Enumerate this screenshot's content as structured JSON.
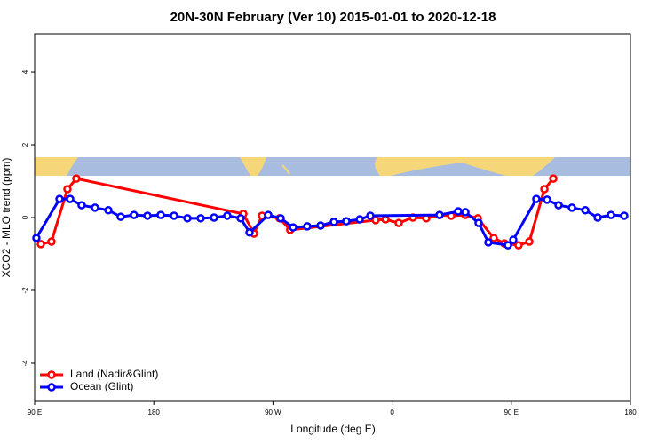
{
  "chart_data": {
    "type": "line",
    "title": "20N-30N February (Ver 10)   2015-01-01 to 2020-12-18",
    "x_label": "Longitude (deg E)",
    "y_label": "XCO2 - MLO trend (ppm)",
    "xlim": [
      90,
      540
    ],
    "xticks": [
      {
        "value": 90,
        "label": "90 E"
      },
      {
        "value": 180,
        "label": "180"
      },
      {
        "value": 270,
        "label": "90 W"
      },
      {
        "value": 360,
        "label": "0"
      },
      {
        "value": 450,
        "label": "90 E"
      },
      {
        "value": 540,
        "label": "180"
      }
    ],
    "ylim": [
      -5.05,
      5.05
    ],
    "yticks": [
      -4,
      -2,
      0,
      2,
      4
    ],
    "legend": "bottom-left",
    "series": [
      {
        "name": "Land (Nadir&Glint)",
        "color": "#ff0000",
        "x": [
          94.7,
          102.7,
          114.8,
          121.5,
          247.6,
          255.7,
          261.7,
          275,
          283,
          347.5,
          355,
          365,
          375.7,
          385.8,
          395.8,
          404.6,
          415.3,
          424.7,
          436.7,
          444.8,
          455.5,
          463.6,
          475,
          481.7
        ],
        "values": [
          -0.73,
          -0.66,
          0.78,
          1.07,
          0.1,
          -0.44,
          0.05,
          -0.02,
          -0.34,
          -0.07,
          -0.05,
          -0.15,
          0,
          -0.02,
          0.07,
          0.05,
          0.07,
          -0.02,
          -0.56,
          -0.71,
          -0.76,
          -0.66,
          0.78,
          1.07
        ]
      },
      {
        "name": "Ocean (Glint)",
        "color": "#0000ff",
        "x": [
          91.3,
          108.8,
          116.8,
          125.5,
          135.6,
          145.7,
          155,
          165,
          175.2,
          185.2,
          195.3,
          205.4,
          215.4,
          225.5,
          235.5,
          245.6,
          252.3,
          266.4,
          275.8,
          285.2,
          295.9,
          306,
          316,
          325.4,
          335.5,
          343.5,
          395.8,
          409.9,
          415.3,
          425.3,
          432.7,
          447.5,
          451.5,
          468.9,
          477,
          485.7,
          495.8,
          505.9,
          515.2,
          525.3,
          535.3
        ],
        "values": [
          -0.56,
          0.51,
          0.51,
          0.34,
          0.27,
          0.2,
          0.02,
          0.07,
          0.05,
          0.07,
          0.05,
          -0.02,
          -0.02,
          0,
          0.05,
          -0.02,
          -0.41,
          0.07,
          -0.02,
          -0.27,
          -0.24,
          -0.22,
          -0.12,
          -0.1,
          -0.05,
          0.05,
          0.07,
          0.17,
          0.15,
          -0.15,
          -0.68,
          -0.76,
          -0.61,
          0.51,
          0.49,
          0.34,
          0.27,
          0.2,
          0,
          0.07,
          0.05
        ]
      }
    ]
  }
}
